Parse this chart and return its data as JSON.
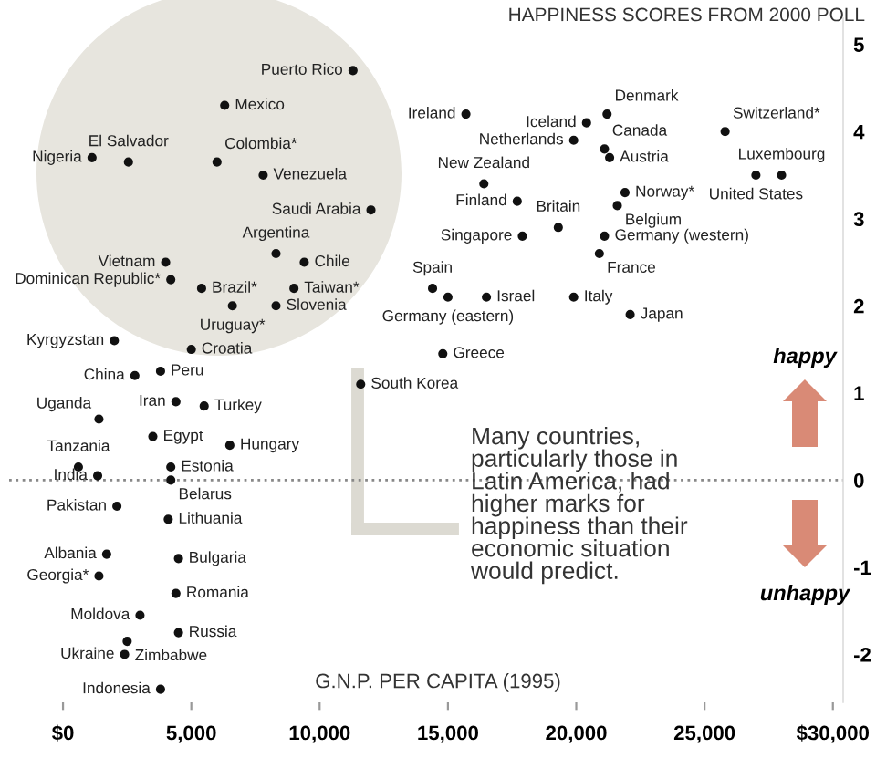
{
  "chart_data": {
    "type": "scatter",
    "ylabel": "HAPPINESS SCORES FROM 2000 POLL",
    "xlabel": "G.N.P. PER CAPITA (1995)",
    "x": [
      11300,
      6300,
      2550,
      1130,
      6000,
      7800,
      12000,
      8300,
      9400,
      4000,
      4200,
      5400,
      9000,
      6600,
      8300,
      2000,
      5000,
      2800,
      3800,
      15700,
      20400,
      21200,
      19900,
      21100,
      21300,
      25800,
      27000,
      28000,
      16400,
      17700,
      19300,
      21900,
      21600,
      17900,
      21100,
      20900,
      14400,
      15000,
      16500,
      19900,
      22100,
      14800,
      11600,
      1400,
      4400,
      5500,
      3500,
      6500,
      600,
      1350,
      4200,
      4200,
      2100,
      4100,
      1700,
      1400,
      4500,
      4400,
      3000,
      4500,
      2500,
      2400,
      3800
    ],
    "values": [
      4.7,
      4.3,
      3.65,
      3.7,
      3.65,
      3.5,
      3.1,
      2.6,
      2.5,
      2.5,
      2.3,
      2.2,
      2.2,
      2.0,
      2.0,
      1.6,
      1.5,
      1.2,
      1.25,
      4.2,
      4.1,
      4.2,
      3.9,
      3.8,
      3.7,
      4.0,
      3.5,
      3.5,
      3.4,
      3.2,
      2.9,
      3.3,
      3.15,
      2.8,
      2.8,
      2.6,
      2.2,
      2.1,
      2.1,
      2.1,
      1.9,
      1.45,
      1.1,
      0.7,
      0.9,
      0.85,
      0.5,
      0.4,
      0.15,
      0.05,
      0.15,
      0.0,
      -0.3,
      -0.45,
      -0.85,
      -1.1,
      -0.9,
      -1.3,
      -1.55,
      -1.75,
      -1.85,
      -2.0,
      -2.4
    ],
    "color": "#111111",
    "marker": "circle",
    "xlim": [
      -2100,
      30400
    ],
    "ylim": [
      -2.55,
      5.3
    ],
    "xticks": [
      {
        "value": 0,
        "label": "$0"
      },
      {
        "value": 5000,
        "label": "5,000"
      },
      {
        "value": 10000,
        "label": "10,000"
      },
      {
        "value": 15000,
        "label": "15,000"
      },
      {
        "value": 20000,
        "label": "20,000"
      },
      {
        "value": 25000,
        "label": "25,000"
      },
      {
        "value": 30000,
        "label": "$30,000"
      }
    ],
    "yticks": [
      {
        "value": -2,
        "label": "-2"
      },
      {
        "value": -1,
        "label": "-1"
      },
      0,
      1,
      2,
      3,
      4,
      5
    ],
    "grid": false,
    "ref_lines": [
      {
        "axis": "y",
        "value": 0,
        "color": "#888888",
        "line_style": "dotted"
      }
    ],
    "annotations": [
      "Many countries,\nparticularly those in\nLatin America, had\nhigher marks for\nhappiness than their\neconomic situation\nwould predict.",
      "happy",
      "unhappy",
      {
        "text": "Puerto Rico",
        "x": 11300,
        "y": 4.7
      },
      {
        "text": "Mexico",
        "x": 6300,
        "y": 4.3
      },
      {
        "text": "El Salvador",
        "x": 2550,
        "y": 3.65
      },
      {
        "text": "Nigeria",
        "x": 1130,
        "y": 3.7
      },
      {
        "text": "Colombia*",
        "x": 6000,
        "y": 3.65
      },
      {
        "text": "Venezuela",
        "x": 7800,
        "y": 3.5
      },
      {
        "text": "Saudi Arabia",
        "x": 12000,
        "y": 3.1
      },
      {
        "text": "Argentina",
        "x": 8300,
        "y": 2.6
      },
      {
        "text": "Chile",
        "x": 9400,
        "y": 2.5
      },
      {
        "text": "Vietnam",
        "x": 4000,
        "y": 2.5
      },
      {
        "text": "Dominican Republic*",
        "x": 4200,
        "y": 2.3
      },
      {
        "text": "Brazil*",
        "x": 5400,
        "y": 2.2
      },
      {
        "text": "Taiwan*",
        "x": 9000,
        "y": 2.2
      },
      {
        "text": "Uruguay*",
        "x": 6600,
        "y": 2.0
      },
      {
        "text": "Slovenia",
        "x": 8300,
        "y": 2.0
      },
      {
        "text": "Kyrgyzstan",
        "x": 2000,
        "y": 1.6
      },
      {
        "text": "Croatia",
        "x": 5000,
        "y": 1.5
      },
      {
        "text": "China",
        "x": 2800,
        "y": 1.2
      },
      {
        "text": "Peru",
        "x": 3800,
        "y": 1.25
      },
      {
        "text": "Ireland",
        "x": 15700,
        "y": 4.2
      },
      {
        "text": "Iceland",
        "x": 20400,
        "y": 4.1
      },
      {
        "text": "Denmark",
        "x": 21200,
        "y": 4.2
      },
      {
        "text": "Netherlands",
        "x": 19900,
        "y": 3.9
      },
      {
        "text": "Canada",
        "x": 21100,
        "y": 3.8
      },
      {
        "text": "Austria",
        "x": 21300,
        "y": 3.7
      },
      {
        "text": "Switzerland*",
        "x": 25800,
        "y": 4.0
      },
      {
        "text": "United States",
        "x": 27000,
        "y": 3.5
      },
      {
        "text": "Luxembourg",
        "x": 28000,
        "y": 3.5
      },
      {
        "text": "New Zealand",
        "x": 16400,
        "y": 3.4
      },
      {
        "text": "Finland",
        "x": 17700,
        "y": 3.2
      },
      {
        "text": "Britain",
        "x": 19300,
        "y": 2.9
      },
      {
        "text": "Norway*",
        "x": 21900,
        "y": 3.3
      },
      {
        "text": "Belgium",
        "x": 21600,
        "y": 3.15
      },
      {
        "text": "Singapore",
        "x": 17900,
        "y": 2.8
      },
      {
        "text": "Germany (western)",
        "x": 21100,
        "y": 2.8
      },
      {
        "text": "France",
        "x": 20900,
        "y": 2.6
      },
      {
        "text": "Spain",
        "x": 14400,
        "y": 2.2
      },
      {
        "text": "Germany (eastern)",
        "x": 15000,
        "y": 2.1
      },
      {
        "text": "Israel",
        "x": 16500,
        "y": 2.1
      },
      {
        "text": "Italy",
        "x": 19900,
        "y": 2.1
      },
      {
        "text": "Japan",
        "x": 22100,
        "y": 1.9
      },
      {
        "text": "Greece",
        "x": 14800,
        "y": 1.45
      },
      {
        "text": "South Korea",
        "x": 11600,
        "y": 1.1
      },
      {
        "text": "Uganda",
        "x": 1400,
        "y": 0.7
      },
      {
        "text": "Iran",
        "x": 4400,
        "y": 0.9
      },
      {
        "text": "Turkey",
        "x": 5500,
        "y": 0.85
      },
      {
        "text": "Egypt",
        "x": 3500,
        "y": 0.5
      },
      {
        "text": "Hungary",
        "x": 6500,
        "y": 0.4
      },
      {
        "text": "Tanzania",
        "x": 600,
        "y": 0.15
      },
      {
        "text": "India",
        "x": 1350,
        "y": 0.05
      },
      {
        "text": "Estonia",
        "x": 4200,
        "y": 0.15
      },
      {
        "text": "Belarus",
        "x": 4200,
        "y": 0.0
      },
      {
        "text": "Pakistan",
        "x": 2100,
        "y": -0.3
      },
      {
        "text": "Lithuania",
        "x": 4100,
        "y": -0.45
      },
      {
        "text": "Albania",
        "x": 1700,
        "y": -0.85
      },
      {
        "text": "Georgia*",
        "x": 1400,
        "y": -1.1
      },
      {
        "text": "Bulgaria",
        "x": 4500,
        "y": -0.9
      },
      {
        "text": "Romania",
        "x": 4400,
        "y": -1.3
      },
      {
        "text": "Moldova",
        "x": 3000,
        "y": -1.55
      },
      {
        "text": "Russia",
        "x": 4500,
        "y": -1.75
      },
      {
        "text": "Zimbabwe",
        "x": 2500,
        "y": -1.85
      },
      {
        "text": "Ukraine",
        "x": 2400,
        "y": -2.0
      },
      {
        "text": "Indonesia",
        "x": 3800,
        "y": -2.4
      }
    ]
  }
}
